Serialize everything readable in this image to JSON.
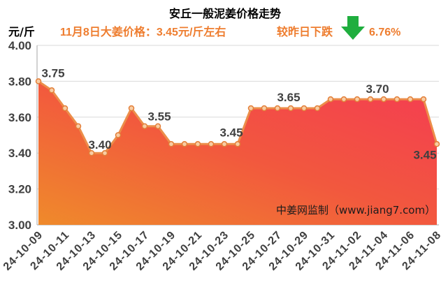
{
  "chart_data": {
    "type": "area",
    "title": "安丘一般泥姜价格走势",
    "ylabel": "元/斤",
    "headline": "11月8日大姜价格：3.45元/斤左右",
    "change_label": "较昨日下跌",
    "change_icon": "down-arrow-icon",
    "change_percent": "6.76%",
    "watermark": "中姜网监制（www.jiang7.com）",
    "ylim": [
      3.0,
      4.0
    ],
    "yticks": [
      "3.00",
      "3.20",
      "3.40",
      "3.60",
      "3.80",
      "4.00"
    ],
    "x": [
      "24-10-09",
      "24-10-10",
      "24-10-11",
      "24-10-12",
      "24-10-13",
      "24-10-14",
      "24-10-15",
      "24-10-16",
      "24-10-17",
      "24-10-18",
      "24-10-19",
      "24-10-20",
      "24-10-21",
      "24-10-22",
      "24-10-23",
      "24-10-24",
      "24-10-25",
      "24-10-26",
      "24-10-27",
      "24-10-28",
      "24-10-29",
      "24-10-30",
      "24-10-31",
      "24-11-01",
      "24-11-02",
      "24-11-03",
      "24-11-04",
      "24-11-05",
      "24-11-06",
      "24-11-07",
      "24-11-08"
    ],
    "xticks": [
      "24-10-09",
      "24-10-11",
      "24-10-13",
      "24-10-15",
      "24-10-17",
      "24-10-19",
      "24-10-21",
      "24-10-23",
      "24-10-25",
      "24-10-27",
      "24-10-29",
      "24-10-31",
      "24-11-02",
      "24-11-04",
      "24-11-06",
      "24-11-08"
    ],
    "series": [
      {
        "values": [
          3.8,
          3.75,
          3.65,
          3.55,
          3.4,
          3.4,
          3.5,
          3.65,
          3.55,
          3.55,
          3.45,
          3.45,
          3.45,
          3.45,
          3.45,
          3.45,
          3.65,
          3.65,
          3.65,
          3.65,
          3.65,
          3.65,
          3.7,
          3.7,
          3.7,
          3.7,
          3.7,
          3.7,
          3.7,
          3.7,
          3.45
        ]
      }
    ],
    "data_labels": [
      {
        "index": 1,
        "text": "3.75"
      },
      {
        "index": 4,
        "text": "3.40"
      },
      {
        "index": 9,
        "text": "3.55"
      },
      {
        "index": 15,
        "text": "3.45"
      },
      {
        "index": 19,
        "text": "3.65"
      },
      {
        "index": 26,
        "text": "3.70"
      },
      {
        "index": 30,
        "text": "3.45"
      }
    ],
    "grid": true,
    "colors": {
      "area_top": "#F43C52",
      "area_mid": "#F2583E",
      "area_bottom": "#EF8A2B",
      "line": "#EC8E4A",
      "marker_fill": "#F8CDA4",
      "marker_stroke": "#E27E38",
      "headline": "#EE7D2F",
      "arrow": "#1FAE3E"
    }
  }
}
